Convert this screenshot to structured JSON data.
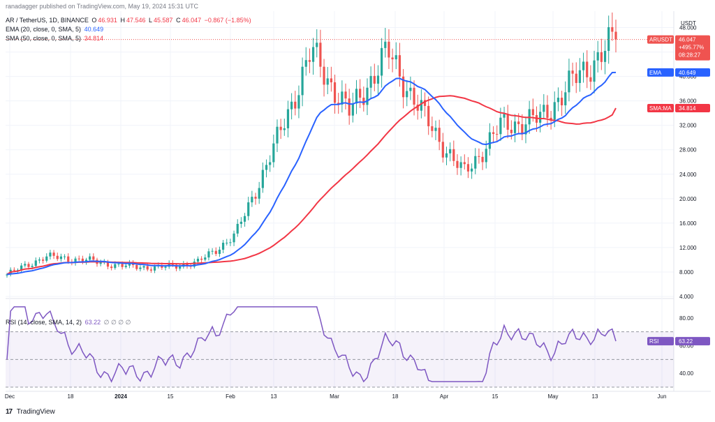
{
  "header": {
    "published": "ranadagger published on TradingView.com, May 19, 2024 15:31 UTC",
    "symbol": "AR / TetherUS, 1D, BINANCE",
    "o_label": "O",
    "o_val": "46.931",
    "h_label": "H",
    "h_val": "47.546",
    "l_label": "L",
    "l_val": "45.587",
    "c_label": "C",
    "c_val": "46.047",
    "change": "−0.867 (−1.85%)",
    "ema_label": "EMA (20, close, 0, SMA, 5)",
    "ema_val": "40.649",
    "sma_label": "SMA (50, close, 0, SMA, 5)",
    "sma_val": "34.814",
    "rsi_label": "RSI (14, close, SMA, 14, 2)",
    "rsi_val": "63.22",
    "rsi_extra": "∅ ∅ ∅ ∅"
  },
  "currency": "USDT",
  "price_tag": {
    "symbol": "ARUSDT",
    "price": "46.047",
    "change": "+495.77%",
    "countdown": "08:28:27"
  },
  "ema_tag": {
    "label": "EMA",
    "value": "40.649"
  },
  "sma_tag": {
    "label": "SMA:MA",
    "value": "34.814"
  },
  "rsi_tag": {
    "label": "RSI",
    "value": "63.22"
  },
  "footer": {
    "brand": "TradingView",
    "logo": "17"
  },
  "colors": {
    "up": "#26a69a",
    "down": "#ef5350",
    "ema": "#2962ff",
    "sma": "#f23645",
    "rsi": "#7e57c2"
  },
  "chart_data": {
    "type": "candlestick",
    "title": "AR / TetherUS, 1D, BINANCE",
    "price_axis": {
      "ticks": [
        "48.000",
        "44.000",
        "40.000",
        "36.000",
        "32.000",
        "28.000",
        "24.000",
        "20.000",
        "16.000",
        "12.000",
        "8.000",
        "4.000"
      ],
      "ylim": [
        4,
        50
      ]
    },
    "rsi_axis": {
      "ticks": [
        "80.00",
        "60.00",
        "40.00"
      ],
      "ylim": [
        30,
        92
      ],
      "bands": [
        70,
        50
      ]
    },
    "time_axis": [
      "Dec",
      "18",
      "2024",
      "15",
      "Feb",
      "13",
      "Mar",
      "18",
      "Apr",
      "15",
      "May",
      "13",
      "Jun"
    ],
    "series": [
      {
        "name": "AR / TetherUS",
        "kind": "ohlc",
        "approx_close_by_segment": [
          {
            "date": "Dec 1",
            "close": 7.6
          },
          {
            "date": "Dec 15",
            "close": 10.5
          },
          {
            "date": "Jan 1",
            "close": 10.0
          },
          {
            "date": "Jan 15",
            "close": 9.0
          },
          {
            "date": "Feb 1",
            "close": 8.7
          },
          {
            "date": "Feb 13",
            "close": 9.5
          },
          {
            "date": "Feb 25",
            "close": 14.0
          },
          {
            "date": "Mar 5",
            "close": 28.0
          },
          {
            "date": "Mar 9",
            "close": 44.0
          },
          {
            "date": "Mar 18",
            "close": 34.0
          },
          {
            "date": "Mar 26",
            "close": 44.0
          },
          {
            "date": "Apr 4",
            "close": 33.0
          },
          {
            "date": "Apr 13",
            "close": 24.0
          },
          {
            "date": "Apr 20",
            "close": 32.0
          },
          {
            "date": "May 1",
            "close": 33.0
          },
          {
            "date": "May 10",
            "close": 40.0
          },
          {
            "date": "May 19",
            "close": 46.047
          }
        ]
      },
      {
        "name": "EMA (20, close, 0, SMA, 5)",
        "last": 40.649
      },
      {
        "name": "SMA (50, close, 0, SMA, 5)",
        "last": 34.814
      },
      {
        "name": "RSI (14, close, SMA, 14, 2)",
        "last": 63.22
      }
    ]
  }
}
